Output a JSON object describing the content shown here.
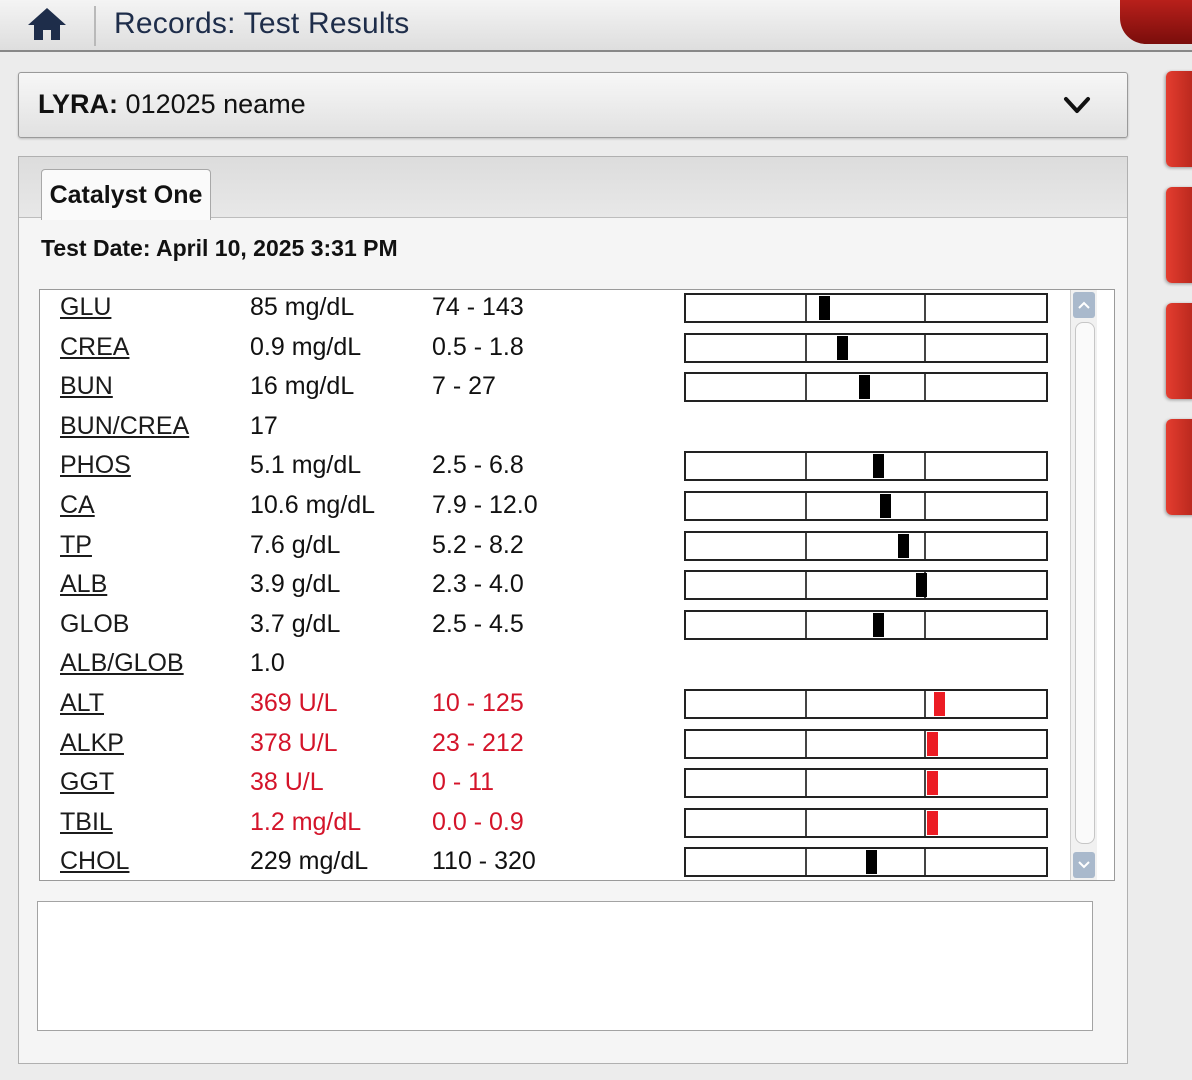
{
  "header": {
    "title": "Records: Test Results",
    "home_icon": "home-icon"
  },
  "patient": {
    "name": "LYRA",
    "separator": ":",
    "id_label": "012025 neame"
  },
  "tab": {
    "label": "Catalyst One"
  },
  "test_date": "Test Date: April 10, 2025 3:31 PM",
  "colors": {
    "abnormal": "#d4142a",
    "marker_normal": "#000000",
    "marker_high": "#ec1c24"
  },
  "results": [
    {
      "name": "GLU",
      "value": "85 mg/dL",
      "range": "74 - 143",
      "abnormal": false,
      "linked": true,
      "position": 0.37
    },
    {
      "name": "CREA",
      "value": "0.9 mg/dL",
      "range": "0.5 - 1.8",
      "abnormal": false,
      "linked": true,
      "position": 0.42
    },
    {
      "name": "BUN",
      "value": "16 mg/dL",
      "range": "7 - 27",
      "abnormal": false,
      "linked": true,
      "position": 0.48
    },
    {
      "name": "BUN/CREA",
      "value": "17",
      "range": "",
      "abnormal": false,
      "linked": true,
      "position": null
    },
    {
      "name": "PHOS",
      "value": "5.1 mg/dL",
      "range": "2.5 - 6.8",
      "abnormal": false,
      "linked": true,
      "position": 0.52
    },
    {
      "name": "CA",
      "value": "10.6 mg/dL",
      "range": "7.9 - 12.0",
      "abnormal": false,
      "linked": true,
      "position": 0.54
    },
    {
      "name": "TP",
      "value": "7.6 g/dL",
      "range": "5.2 - 8.2",
      "abnormal": false,
      "linked": true,
      "position": 0.59
    },
    {
      "name": "ALB",
      "value": "3.9 g/dL",
      "range": "2.3 - 4.0",
      "abnormal": false,
      "linked": true,
      "position": 0.64
    },
    {
      "name": "GLOB",
      "value": "3.7 g/dL",
      "range": "2.5 - 4.5",
      "abnormal": false,
      "linked": false,
      "position": 0.52
    },
    {
      "name": "ALB/GLOB",
      "value": "1.0",
      "range": "",
      "abnormal": false,
      "linked": true,
      "position": null
    },
    {
      "name": "ALT",
      "value": "369 U/L",
      "range": "10 - 125",
      "abnormal": true,
      "linked": true,
      "position": 0.69
    },
    {
      "name": "ALKP",
      "value": "378 U/L",
      "range": "23 - 212",
      "abnormal": true,
      "linked": true,
      "position": 0.67
    },
    {
      "name": "GGT",
      "value": "38 U/L",
      "range": "0 - 11",
      "abnormal": true,
      "linked": true,
      "position": 0.67
    },
    {
      "name": "TBIL",
      "value": "1.2 mg/dL",
      "range": "0.0 - 0.9",
      "abnormal": true,
      "linked": true,
      "position": 0.67
    },
    {
      "name": "CHOL",
      "value": "229 mg/dL",
      "range": "110 - 320",
      "abnormal": false,
      "linked": true,
      "position": 0.5
    }
  ]
}
